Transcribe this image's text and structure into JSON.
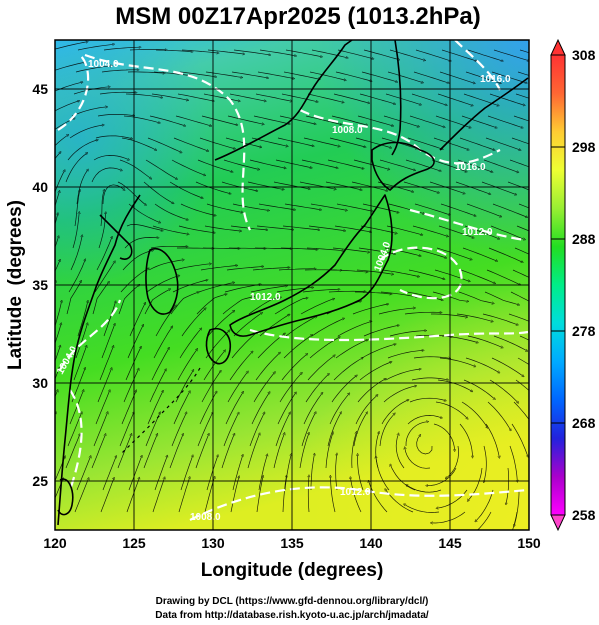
{
  "title": "MSM 00Z17Apr2025 (1013.2hPa)",
  "xlabel": "Longitude (degrees)",
  "ylabel": "Latitude  (degrees)",
  "credits": [
    "Drawing by DCL (https://www.gfd-dennou.org/library/dcl/)",
    "Data from http://database.rish.kyoto-u.ac.jp/arch/jmadata/"
  ],
  "colors": {
    "coast": "#000000",
    "isobar": "#ffffff",
    "streamline": "#000000",
    "grid": "#000000"
  },
  "map": {
    "lon_range": [
      120,
      150
    ],
    "lat_range": [
      22.5,
      47.5
    ],
    "x_ticks": [
      "120",
      "125",
      "130",
      "135",
      "140",
      "145",
      "150"
    ],
    "y_ticks": [
      "25",
      "30",
      "35",
      "40",
      "45"
    ],
    "grid": true
  },
  "colorbar": {
    "range": [
      258,
      308
    ],
    "ticks": [
      "308",
      "298",
      "288",
      "278",
      "268",
      "258"
    ],
    "palette": [
      "#ff00ff",
      "#aa00cc",
      "#2222dd",
      "#0066ff",
      "#00aaff",
      "#00dddd",
      "#00ee88",
      "#22dd22",
      "#99ee33",
      "#eeff33",
      "#ffcc33",
      "#ff6633",
      "#ff3333"
    ]
  },
  "isobar_labels": [
    "1004.0",
    "1008.0",
    "1012.0",
    "1016.0",
    "1004.0",
    "1004.0",
    "1012.0",
    "1012.0",
    "1008.0",
    "1016.0"
  ]
}
